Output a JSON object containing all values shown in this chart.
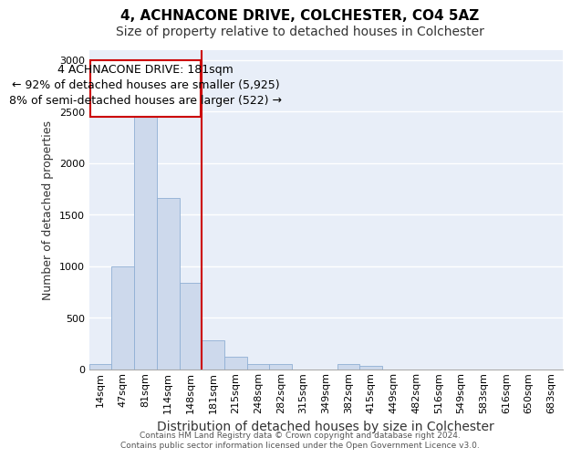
{
  "title_line1": "4, ACHNACONE DRIVE, COLCHESTER, CO4 5AZ",
  "title_line2": "Size of property relative to detached houses in Colchester",
  "xlabel": "Distribution of detached houses by size in Colchester",
  "ylabel": "Number of detached properties",
  "categories": [
    "14sqm",
    "47sqm",
    "81sqm",
    "114sqm",
    "148sqm",
    "181sqm",
    "215sqm",
    "248sqm",
    "282sqm",
    "315sqm",
    "349sqm",
    "382sqm",
    "415sqm",
    "449sqm",
    "482sqm",
    "516sqm",
    "549sqm",
    "583sqm",
    "616sqm",
    "650sqm",
    "683sqm"
  ],
  "values": [
    50,
    1000,
    2470,
    1660,
    840,
    275,
    120,
    50,
    50,
    0,
    0,
    50,
    35,
    0,
    0,
    0,
    0,
    0,
    0,
    0,
    0
  ],
  "bar_color": "#cdd9ec",
  "bar_edge_color": "#8fafd4",
  "highlight_index": 5,
  "highlight_line_color": "#cc0000",
  "annotation_line1": "4 ACHNACONE DRIVE: 181sqm",
  "annotation_line2": "← 92% of detached houses are smaller (5,925)",
  "annotation_line3": "8% of semi-detached houses are larger (522) →",
  "annotation_box_color": "#cc0000",
  "ylim": [
    0,
    3100
  ],
  "yticks": [
    0,
    500,
    1000,
    1500,
    2000,
    2500,
    3000
  ],
  "background_color": "#e8eef8",
  "grid_color": "#ffffff",
  "footer_text": "Contains HM Land Registry data © Crown copyright and database right 2024.\nContains public sector information licensed under the Open Government Licence v3.0.",
  "title_fontsize": 11,
  "subtitle_fontsize": 10,
  "annotation_fontsize": 9,
  "tick_fontsize": 8,
  "label_fontsize": 10,
  "ylabel_fontsize": 9
}
